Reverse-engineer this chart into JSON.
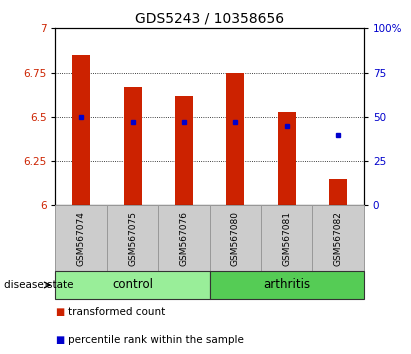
{
  "title": "GDS5243 / 10358656",
  "samples": [
    "GSM567074",
    "GSM567075",
    "GSM567076",
    "GSM567080",
    "GSM567081",
    "GSM567082"
  ],
  "bar_tops": [
    6.85,
    6.67,
    6.62,
    6.75,
    6.53,
    6.15
  ],
  "blue_dot_values": [
    6.5,
    6.47,
    6.47,
    6.47,
    6.45,
    6.4
  ],
  "ylim_left": [
    6.0,
    7.0
  ],
  "ylim_right": [
    0,
    100
  ],
  "yticks_left": [
    6.0,
    6.25,
    6.5,
    6.75,
    7.0
  ],
  "yticks_right": [
    0,
    25,
    50,
    75,
    100
  ],
  "ytick_labels_left": [
    "6",
    "6.25",
    "6.5",
    "6.75",
    "7"
  ],
  "ytick_labels_right": [
    "0",
    "25",
    "50",
    "75",
    "100%"
  ],
  "bar_color": "#cc2200",
  "dot_color": "#0000cc",
  "control_color": "#99ee99",
  "arthritis_color": "#55cc55",
  "label_bg_color": "#cccccc",
  "disease_state_label": "disease state",
  "control_label": "control",
  "arthritis_label": "arthritis",
  "legend_red_label": "transformed count",
  "legend_blue_label": "percentile rank within the sample",
  "title_fontsize": 10,
  "tick_fontsize": 7.5,
  "sample_fontsize": 6.5,
  "disease_fontsize": 8.5,
  "legend_fontsize": 7.5,
  "grid_yticks": [
    6.25,
    6.5,
    6.75
  ],
  "bar_width": 0.35
}
